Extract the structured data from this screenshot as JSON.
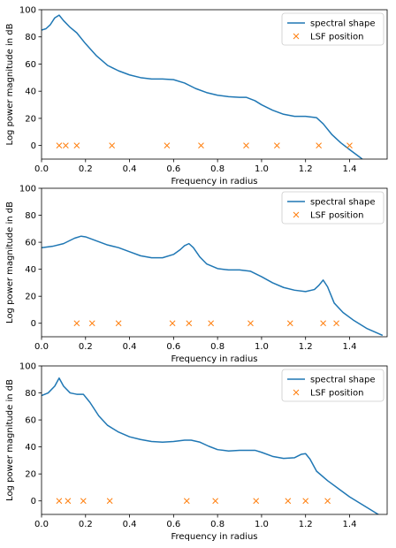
{
  "colors": {
    "line": "#1f77b4",
    "marker": "#ff7f0e",
    "axis": "#000000",
    "legend_border": "#cccccc"
  },
  "chart_data": [
    {
      "type": "line",
      "xlabel": "Frequency in radius",
      "ylabel": "Log power magnitude in dB",
      "xlim": [
        0,
        1.5708
      ],
      "ylim": [
        -10,
        100
      ],
      "xticks": [
        "0.0",
        "0.2",
        "0.4",
        "0.6",
        "0.8",
        "1.0",
        "1.2",
        "1.4"
      ],
      "yticks": [
        "0",
        "20",
        "40",
        "60",
        "80",
        "100"
      ],
      "legend": {
        "position": "top-right",
        "entries": [
          "spectral shape",
          "LSF position"
        ]
      },
      "series": [
        {
          "name": "spectral shape",
          "kind": "line",
          "x": [
            0.0,
            0.02,
            0.04,
            0.06,
            0.08,
            0.1,
            0.13,
            0.16,
            0.2,
            0.25,
            0.3,
            0.35,
            0.4,
            0.45,
            0.5,
            0.55,
            0.6,
            0.65,
            0.7,
            0.75,
            0.8,
            0.85,
            0.9,
            0.93,
            0.97,
            1.0,
            1.05,
            1.1,
            1.15,
            1.2,
            1.25,
            1.28,
            1.32,
            1.36,
            1.4,
            1.45,
            1.5,
            1.55
          ],
          "y": [
            85,
            86,
            89,
            94,
            96,
            92,
            87,
            83,
            75,
            66,
            59,
            55,
            52,
            50,
            49,
            49,
            48.5,
            46,
            42,
            39,
            37,
            36,
            35.5,
            35.5,
            33,
            30,
            26,
            23,
            21.5,
            21.5,
            20.5,
            16,
            8,
            2,
            -3,
            -9,
            -16,
            -22
          ]
        },
        {
          "name": "LSF position",
          "kind": "scatter",
          "x": [
            0.08,
            0.11,
            0.16,
            0.32,
            0.57,
            0.725,
            0.93,
            1.07,
            1.26,
            1.4
          ],
          "y": [
            0,
            0,
            0,
            0,
            0,
            0,
            0,
            0,
            0,
            0
          ]
        }
      ]
    },
    {
      "type": "line",
      "xlabel": "Frequency in radius",
      "ylabel": "Log power magnitude in dB",
      "xlim": [
        0,
        1.5708
      ],
      "ylim": [
        -10,
        100
      ],
      "xticks": [
        "0.0",
        "0.2",
        "0.4",
        "0.6",
        "0.8",
        "1.0",
        "1.2",
        "1.4"
      ],
      "yticks": [
        "0",
        "20",
        "40",
        "60",
        "80",
        "100"
      ],
      "legend": {
        "position": "top-right",
        "entries": [
          "spectral shape",
          "LSF position"
        ]
      },
      "series": [
        {
          "name": "spectral shape",
          "kind": "line",
          "x": [
            0.0,
            0.05,
            0.1,
            0.15,
            0.18,
            0.2,
            0.25,
            0.3,
            0.35,
            0.4,
            0.45,
            0.5,
            0.55,
            0.6,
            0.63,
            0.65,
            0.67,
            0.69,
            0.72,
            0.75,
            0.8,
            0.85,
            0.9,
            0.95,
            1.0,
            1.05,
            1.1,
            1.15,
            1.2,
            1.24,
            1.26,
            1.28,
            1.3,
            1.33,
            1.37,
            1.42,
            1.48,
            1.55
          ],
          "y": [
            56,
            57,
            59,
            63,
            64.5,
            64,
            61,
            58,
            56,
            53,
            50,
            48.5,
            48.5,
            51,
            54.5,
            57.5,
            59,
            56,
            49,
            44,
            40.5,
            39.5,
            39.5,
            38.5,
            34.5,
            30,
            26.5,
            24.5,
            23.5,
            25,
            28,
            32,
            27,
            15,
            8,
            2,
            -4,
            -9
          ]
        },
        {
          "name": "LSF position",
          "kind": "scatter",
          "x": [
            0.16,
            0.23,
            0.35,
            0.595,
            0.67,
            0.77,
            0.95,
            1.13,
            1.28,
            1.34
          ],
          "y": [
            0,
            0,
            0,
            0,
            0,
            0,
            0,
            0,
            0,
            0
          ]
        }
      ]
    },
    {
      "type": "line",
      "xlabel": "Frequency in radius",
      "ylabel": "Log power magnitude in dB",
      "xlim": [
        0,
        1.5708
      ],
      "ylim": [
        -10,
        100
      ],
      "xticks": [
        "0.0",
        "0.2",
        "0.4",
        "0.6",
        "0.8",
        "1.0",
        "1.2",
        "1.4"
      ],
      "yticks": [
        "0",
        "20",
        "40",
        "60",
        "80",
        "100"
      ],
      "legend": {
        "position": "top-right",
        "entries": [
          "spectral shape",
          "LSF position"
        ]
      },
      "series": [
        {
          "name": "spectral shape",
          "kind": "line",
          "x": [
            0.0,
            0.03,
            0.06,
            0.08,
            0.1,
            0.13,
            0.16,
            0.19,
            0.22,
            0.26,
            0.3,
            0.35,
            0.4,
            0.45,
            0.5,
            0.55,
            0.6,
            0.65,
            0.68,
            0.72,
            0.76,
            0.8,
            0.85,
            0.9,
            0.97,
            1.0,
            1.05,
            1.1,
            1.15,
            1.18,
            1.2,
            1.22,
            1.25,
            1.3,
            1.35,
            1.4,
            1.45,
            1.5,
            1.55
          ],
          "y": [
            78,
            80,
            85,
            91,
            85,
            80,
            79,
            79,
            73,
            63,
            56,
            51,
            47.5,
            45.5,
            44,
            43.5,
            44,
            45,
            45,
            43.5,
            40.5,
            38,
            37,
            37.5,
            37.5,
            36,
            33,
            31.5,
            32,
            34.5,
            35,
            31,
            22,
            15,
            9,
            3,
            -2,
            -7,
            -12
          ]
        },
        {
          "name": "LSF position",
          "kind": "scatter",
          "x": [
            0.08,
            0.12,
            0.19,
            0.31,
            0.66,
            0.79,
            0.975,
            1.12,
            1.2,
            1.3
          ],
          "y": [
            0,
            0,
            0,
            0,
            0,
            0,
            0,
            0,
            0,
            0
          ]
        }
      ]
    }
  ]
}
